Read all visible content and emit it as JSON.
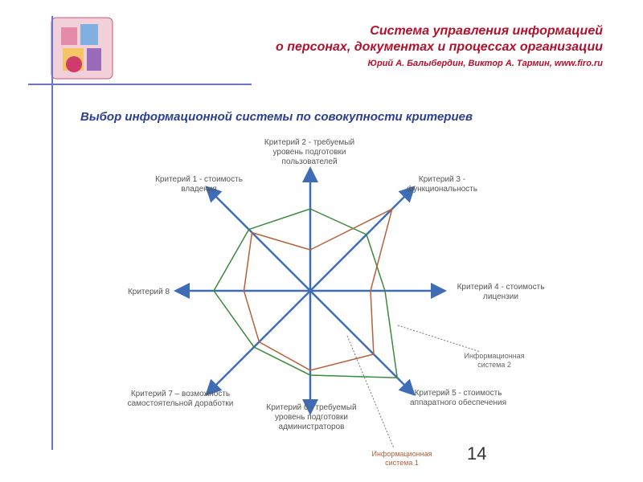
{
  "header": {
    "title_line1": "Система управления информацией",
    "title_line2": "о персонах, документах и процессах организации",
    "authors": "Юрий А. Балыбердин, Виктор А. Тармин, www.firo.ru"
  },
  "subtitle": "Выбор информационной системы по совокупности критериев",
  "page_number": "14",
  "axes": [
    {
      "label": "Критерий 2 - требуемый уровень подготовки пользователей"
    },
    {
      "label": "Критерий 3 - функциональность"
    },
    {
      "label": "Критерий 4 - стоимость лицензии"
    },
    {
      "label": "Критерий 5 - стоимость аппаратного обеспечения"
    },
    {
      "label": "Критерий 6 - требуемый уровень подготовки администраторов"
    },
    {
      "label": "Критерий 7 – возможность самостоятельной доработки"
    },
    {
      "label": "Критерий 8"
    },
    {
      "label": "Критерий 1 - стоимость владения"
    }
  ],
  "series": [
    {
      "name": "Информационная система 2",
      "color": "#3a8a3a",
      "levels": [
        0.68,
        0.55,
        0.62,
        0.85,
        0.7,
        0.55,
        0.8,
        0.6
      ]
    },
    {
      "name": "Информационная система 1",
      "color": "#b5623a",
      "levels": [
        0.34,
        0.8,
        0.5,
        0.62,
        0.66,
        0.5,
        0.55,
        0.57
      ]
    }
  ],
  "colors": {
    "axis": "#3f6db5",
    "header": "#b3112b",
    "subtitle": "#2b3f8f",
    "rule": "#6b74c9"
  }
}
